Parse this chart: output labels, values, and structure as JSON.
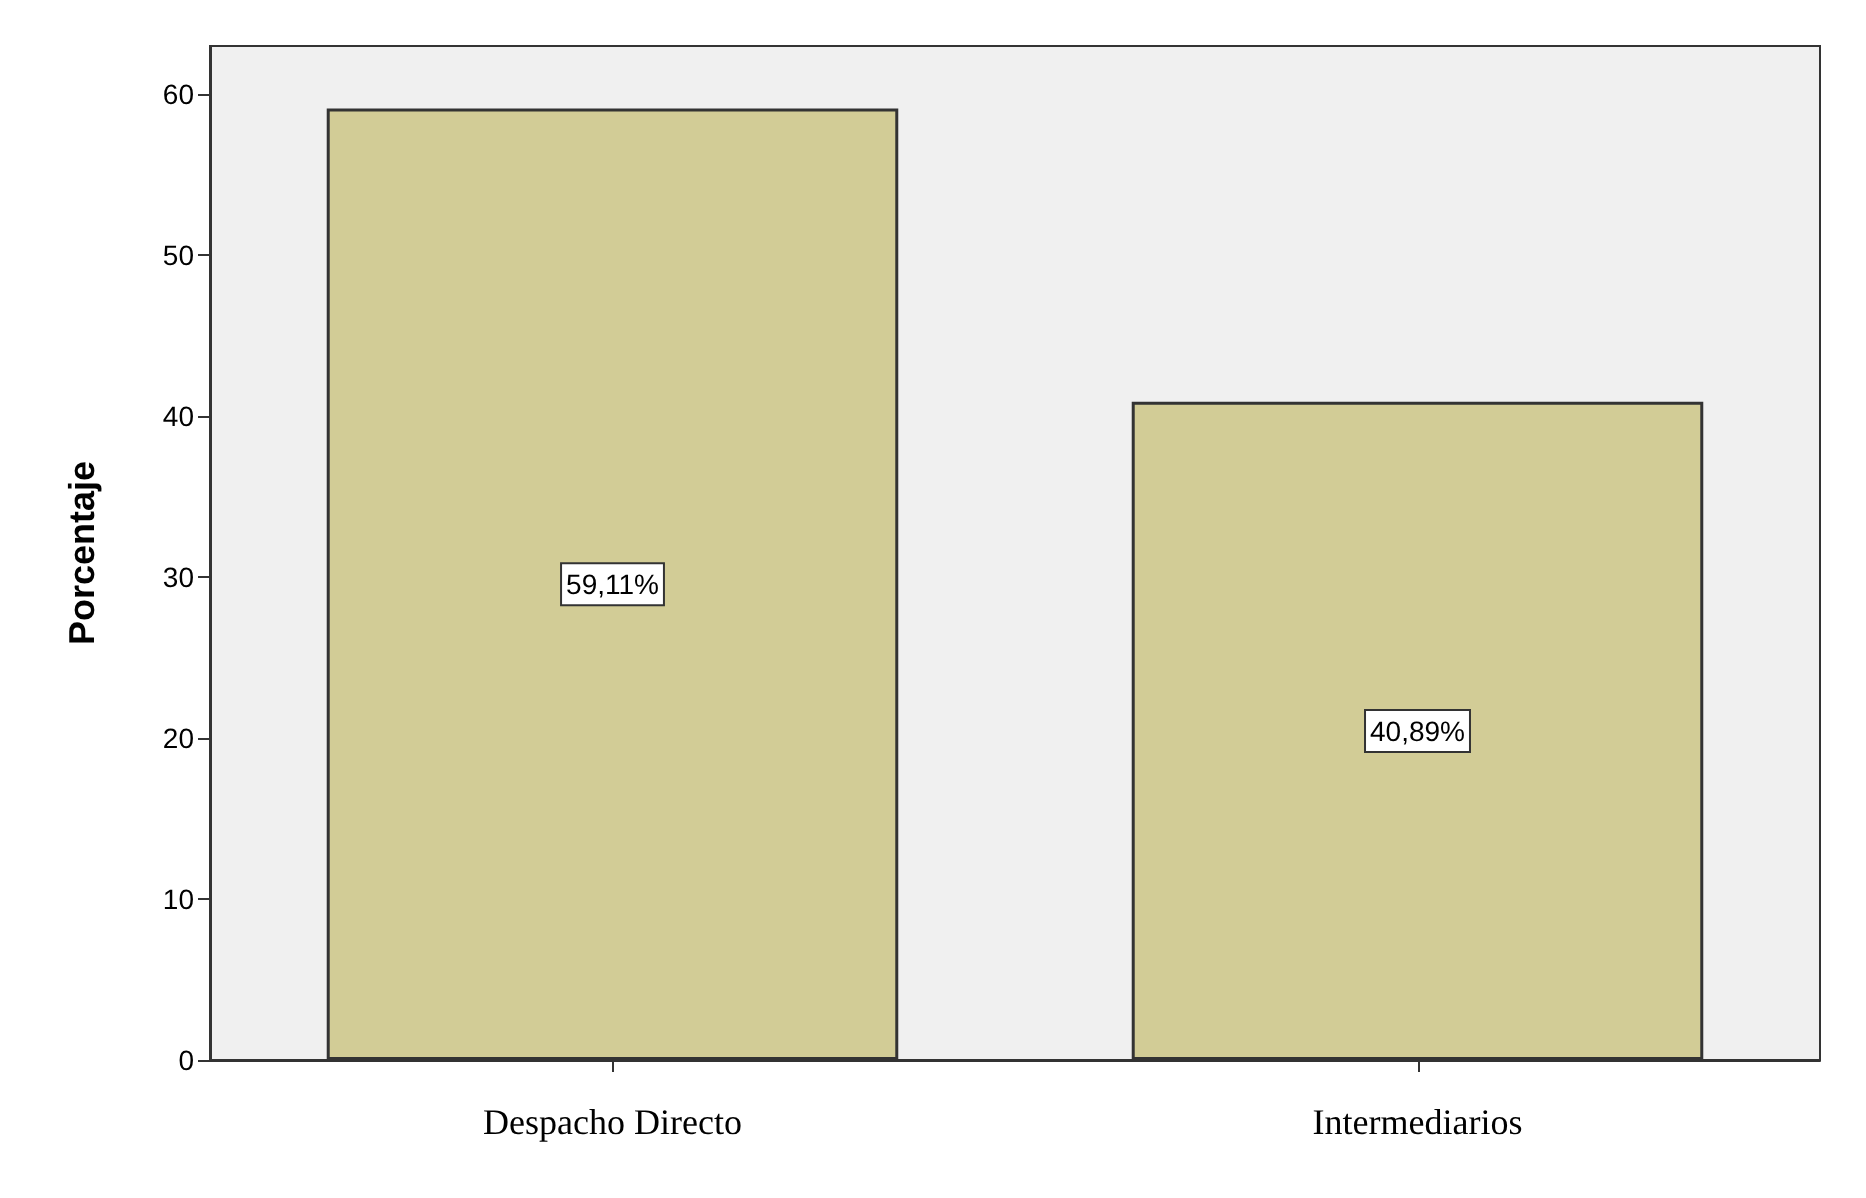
{
  "chart_data": {
    "type": "bar",
    "ylabel": "Porcentaje",
    "categories": [
      "Despacho Directo",
      "Intermediarios"
    ],
    "values": [
      59.11,
      40.89
    ],
    "color": "#d2cc96",
    "value_labels": [
      "59,11%",
      "40,89%"
    ],
    "ylim": [
      0,
      63
    ],
    "yticks": [
      0,
      10,
      20,
      30,
      40,
      50,
      60
    ],
    "grid": false
  }
}
